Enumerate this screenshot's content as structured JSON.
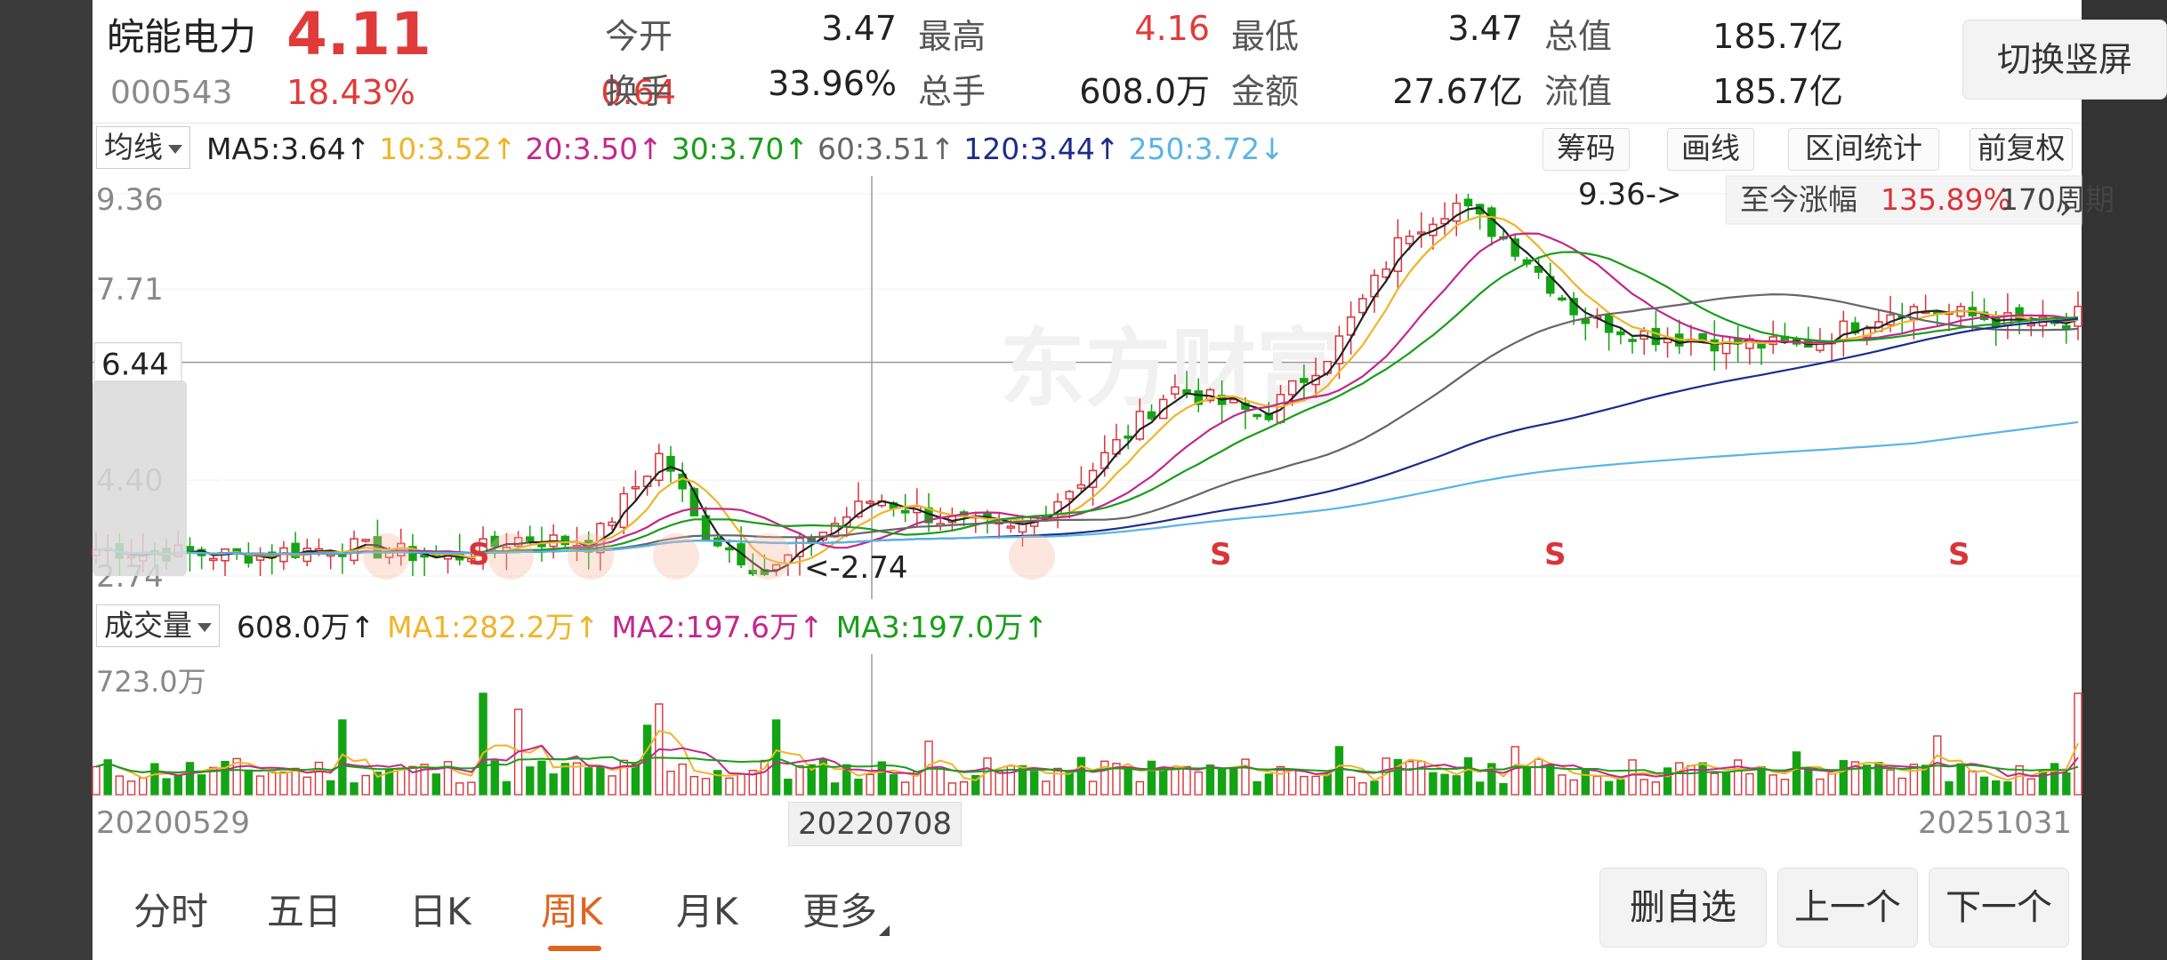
{
  "header": {
    "stock_name": "皖能电力",
    "price": "4.11",
    "code": "000543",
    "change_pct": "18.43%",
    "change_amt": "0.64",
    "switch_button": "切换竖屏",
    "stats": [
      {
        "label": "今开",
        "value": "3.47",
        "color": "#222"
      },
      {
        "label": "最高",
        "value": "4.16",
        "color": "#e03b3b"
      },
      {
        "label": "最低",
        "value": "3.47",
        "color": "#222"
      },
      {
        "label": "总值",
        "value": "185.7亿",
        "color": "#222"
      },
      {
        "label": "换手",
        "value": "33.96%",
        "color": "#222"
      },
      {
        "label": "总手",
        "value": "608.0万",
        "color": "#222"
      },
      {
        "label": "金额",
        "value": "27.67亿",
        "color": "#222"
      },
      {
        "label": "流值",
        "value": "185.7亿",
        "color": "#222"
      }
    ]
  },
  "indicator_bar": {
    "selector": "均线",
    "items": [
      {
        "text": "MA5:3.64↑",
        "color": "#222"
      },
      {
        "text": "10:3.52↑",
        "color": "#f0b429"
      },
      {
        "text": "20:3.50↑",
        "color": "#c2288c"
      },
      {
        "text": "30:3.70↑",
        "color": "#1a9e1a"
      },
      {
        "text": "60:3.51↑",
        "color": "#666666"
      },
      {
        "text": "120:3.44↑",
        "color": "#1c2c8c"
      },
      {
        "text": "250:3.72↓",
        "color": "#5ab4e6"
      }
    ],
    "buttons": [
      "筹码",
      "画线",
      "区间统计",
      "前复权"
    ]
  },
  "price_chart": {
    "y_ticks": [
      "9.36",
      "7.71",
      "6.44",
      "4.40",
      "2.74"
    ],
    "crosshair_value": "6.44",
    "high_marker": "9.36->",
    "low_marker": "<-2.74",
    "since_label": "至今涨幅",
    "since_value": "135.89%",
    "since_period": "170周期",
    "watermark": "东方财富",
    "signal_letter": "S"
  },
  "volume_bar": {
    "selector": "成交量",
    "items": [
      {
        "text": "608.0万↑",
        "color": "#222"
      },
      {
        "text": "MA1:282.2万↑",
        "color": "#f0b429"
      },
      {
        "text": "MA2:197.6万↑",
        "color": "#c2288c"
      },
      {
        "text": "MA3:197.0万↑",
        "color": "#1a9e1a"
      }
    ],
    "max_label": "723.0万"
  },
  "dates": {
    "start": "20200529",
    "cursor": "20220708",
    "end": "20251031"
  },
  "bottom_tabs": [
    "分时",
    "五日",
    "日K",
    "周K",
    "月K",
    "更多"
  ],
  "active_tab": "周K",
  "bottom_buttons": [
    "删自选",
    "上一个",
    "下一个"
  ]
}
